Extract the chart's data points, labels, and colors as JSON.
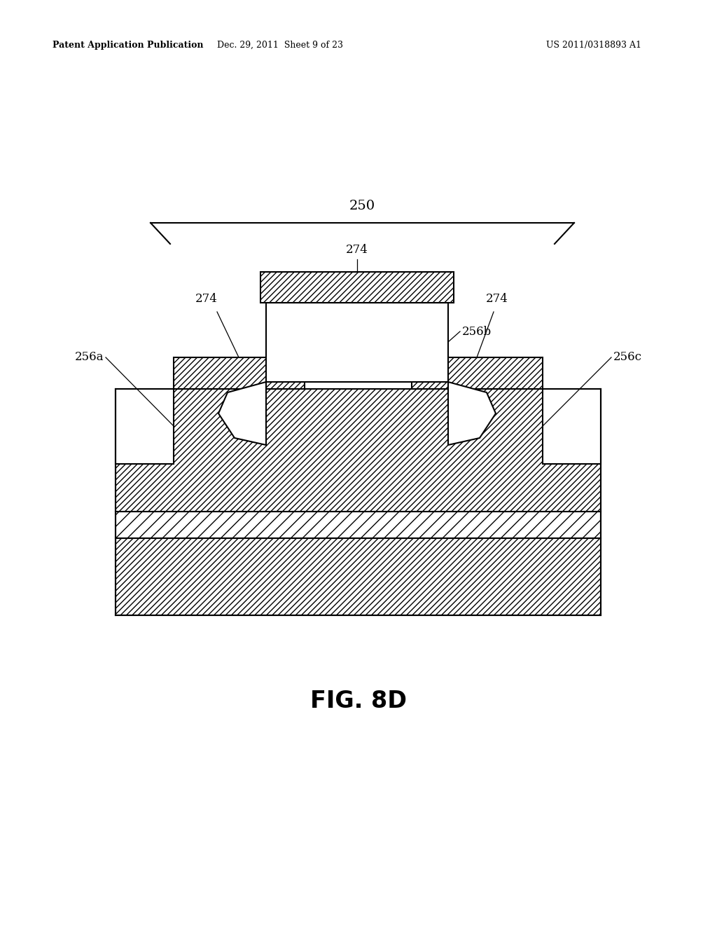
{
  "fig_label": "FIG. 8D",
  "patent_header_left": "Patent Application Publication",
  "patent_header_mid": "Dec. 29, 2011  Sheet 9 of 23",
  "patent_header_right": "US 2011/0318893 A1",
  "background_color": "#ffffff",
  "line_color": "#000000",
  "label_250": "250",
  "label_274_top": "274",
  "label_274_left": "274",
  "label_274_right": "274",
  "label_256a": "256a",
  "label_256b": "256b",
  "label_256c": "256c"
}
